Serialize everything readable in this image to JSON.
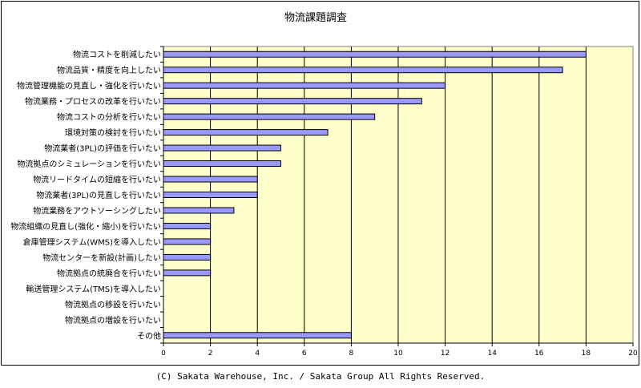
{
  "chart_data": {
    "type": "bar",
    "orientation": "horizontal",
    "title": "物流課題調査",
    "categories": [
      "物流コストを削減したい",
      "物流品質・精度を向上したい",
      "物流管理機能の見直し・強化を行いたい",
      "物流業務・プロセスの改革を行いたい",
      "物流コストの分析を行いたい",
      "環境対策の検討を行いたい",
      "物流業者(3PL)の評価を行いたい",
      "物流拠点のシミュレーションを行いたい",
      "物流リードタイムの短縮を行いたい",
      "物流業者(3PL)の見直しを行いたい",
      "物流業務をアウトソーシングしたい",
      "物流組織の見直し(強化・縮小)を行いたい",
      "倉庫管理システム(WMS)を導入したい",
      "物流センターを新設(計画)したい",
      "物流拠点の統廃合を行いたい",
      "輸送管理システム(TMS)を導入したい",
      "物流拠点の移設を行いたい",
      "物流拠点の増設を行いたい",
      "その他"
    ],
    "values": [
      18,
      17,
      12,
      11,
      9,
      7,
      5,
      5,
      4,
      4,
      3,
      2,
      2,
      2,
      2,
      0,
      0,
      0,
      8
    ],
    "xlim": [
      0,
      20
    ],
    "xticks": [
      0,
      2,
      4,
      6,
      8,
      10,
      12,
      14,
      16,
      18,
      20
    ],
    "grid": true,
    "colors": {
      "bar_fill": "#9999ff",
      "bar_stroke": "#000000",
      "plot_background": "#ffffcc",
      "gridline": "#000000"
    }
  },
  "footer": "(C) Sakata Warehouse, Inc. / Sakata Group All Rights Reserved."
}
